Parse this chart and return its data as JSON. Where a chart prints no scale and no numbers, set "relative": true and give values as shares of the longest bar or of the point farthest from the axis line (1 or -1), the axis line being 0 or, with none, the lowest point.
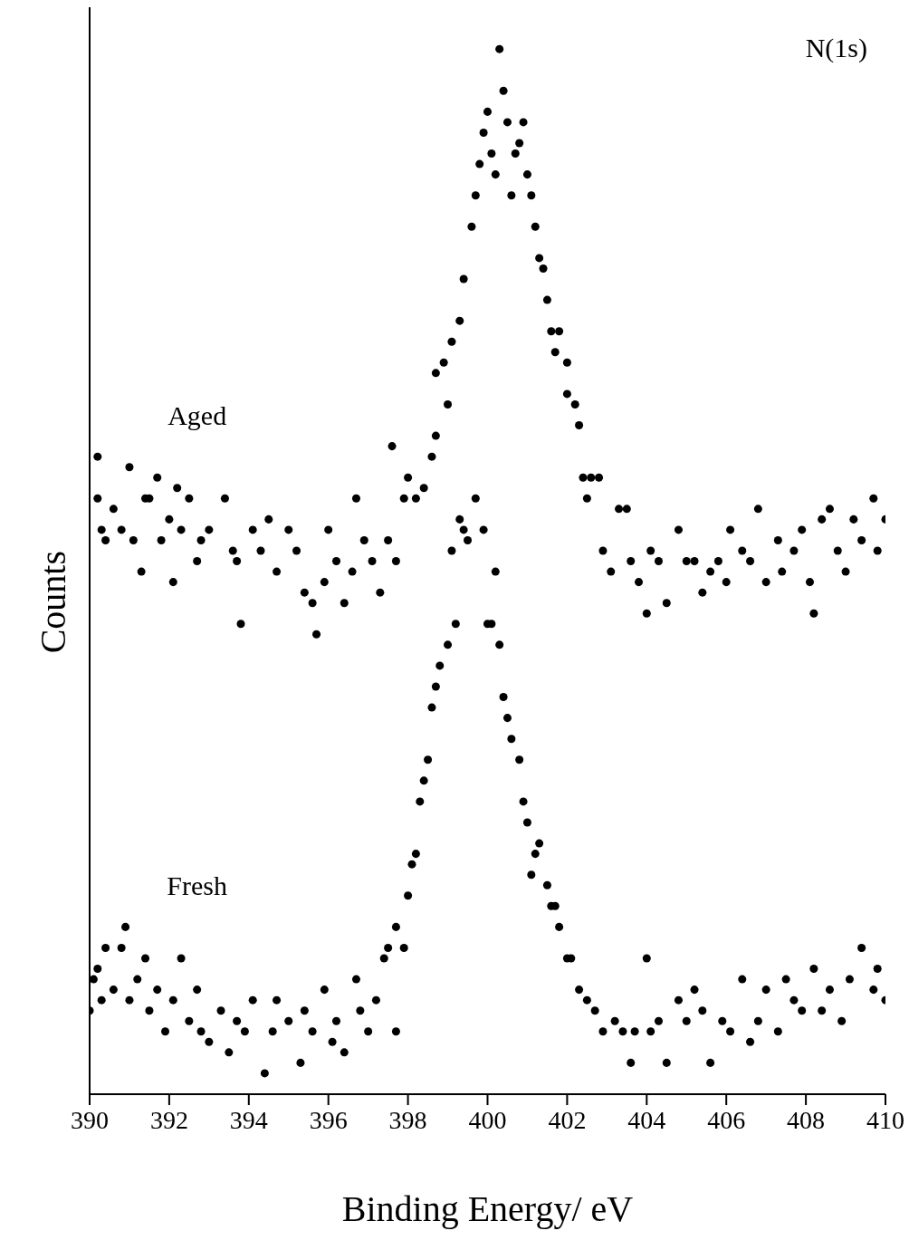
{
  "chart_data": {
    "type": "scatter",
    "relative": true,
    "xlabel": "Binding Energy/ eV",
    "ylabel": "Counts",
    "annotations": [
      "N(1s)"
    ],
    "xlim": [
      390,
      410
    ],
    "xticks": [
      390,
      392,
      394,
      396,
      398,
      400,
      402,
      404,
      406,
      408,
      410
    ],
    "marker": "circle",
    "grid": false,
    "legend": false,
    "series": [
      {
        "name": "Aged",
        "color": "#000000",
        "x": [
          390.2,
          390.2,
          390.3,
          390.4,
          390.6,
          390.8,
          391.0,
          391.1,
          391.3,
          391.4,
          391.5,
          391.7,
          391.8,
          392.0,
          392.1,
          392.2,
          392.3,
          392.5,
          392.7,
          392.8,
          393.0,
          393.4,
          393.6,
          393.7,
          393.8,
          394.1,
          394.3,
          394.5,
          394.7,
          395.0,
          395.2,
          395.4,
          395.6,
          395.7,
          395.9,
          396.0,
          396.2,
          396.4,
          396.6,
          396.7,
          396.9,
          397.1,
          397.3,
          397.5,
          397.6,
          397.7,
          397.9,
          398.0,
          398.2,
          398.4,
          398.6,
          398.7,
          398.7,
          398.9,
          399.0,
          399.1,
          399.3,
          399.4,
          399.6,
          399.7,
          399.8,
          399.9,
          400.0,
          400.1,
          400.2,
          400.3,
          400.4,
          400.5,
          400.6,
          400.7,
          400.8,
          400.9,
          401.0,
          401.1,
          401.2,
          401.3,
          401.4,
          401.5,
          401.6,
          401.7,
          401.8,
          402.0,
          402.0,
          402.2,
          402.3,
          402.4,
          402.5,
          402.6,
          402.8,
          402.9,
          403.1,
          403.3,
          403.5,
          403.6,
          403.8,
          404.0,
          404.1,
          404.3,
          404.5,
          404.8,
          405.0,
          405.2,
          405.4,
          405.6,
          405.8,
          406.0,
          406.1,
          406.4,
          406.6,
          406.8,
          407.0,
          407.3,
          407.4,
          407.7,
          407.9,
          408.1,
          408.2,
          408.4,
          408.6,
          408.8,
          409.0,
          409.2,
          409.4,
          409.7,
          409.8,
          410.0
        ],
        "values": [
          0.61,
          0.57,
          0.54,
          0.53,
          0.56,
          0.54,
          0.6,
          0.53,
          0.5,
          0.57,
          0.57,
          0.59,
          0.53,
          0.55,
          0.49,
          0.58,
          0.54,
          0.57,
          0.51,
          0.53,
          0.54,
          0.57,
          0.52,
          0.51,
          0.45,
          0.54,
          0.52,
          0.55,
          0.5,
          0.54,
          0.52,
          0.48,
          0.47,
          0.44,
          0.49,
          0.54,
          0.51,
          0.47,
          0.5,
          0.57,
          0.53,
          0.51,
          0.48,
          0.53,
          0.62,
          0.51,
          0.57,
          0.59,
          0.57,
          0.58,
          0.61,
          0.69,
          0.63,
          0.7,
          0.66,
          0.72,
          0.74,
          0.78,
          0.83,
          0.86,
          0.89,
          0.92,
          0.94,
          0.9,
          0.88,
          1,
          0.96,
          0.93,
          0.86,
          0.9,
          0.91,
          0.93,
          0.88,
          0.86,
          0.83,
          0.8,
          0.79,
          0.76,
          0.73,
          0.71,
          0.73,
          0.7,
          0.67,
          0.66,
          0.64,
          0.59,
          0.57,
          0.59,
          0.59,
          0.52,
          0.5,
          0.56,
          0.56,
          0.51,
          0.49,
          0.46,
          0.52,
          0.51,
          0.47,
          0.54,
          0.51,
          0.51,
          0.48,
          0.5,
          0.51,
          0.49,
          0.54,
          0.52,
          0.51,
          0.56,
          0.49,
          0.53,
          0.5,
          0.52,
          0.54,
          0.49,
          0.46,
          0.55,
          0.56,
          0.52,
          0.5,
          0.55,
          0.53,
          0.57,
          0.52,
          0.55
        ]
      },
      {
        "name": "Fresh",
        "color": "#000000",
        "x": [
          390.0,
          390.1,
          390.2,
          390.3,
          390.4,
          390.6,
          390.8,
          390.9,
          391.0,
          391.2,
          391.4,
          391.5,
          391.7,
          391.9,
          392.1,
          392.3,
          392.5,
          392.7,
          392.8,
          393.0,
          393.3,
          393.5,
          393.7,
          393.9,
          394.1,
          394.4,
          394.6,
          394.7,
          395.0,
          395.3,
          395.4,
          395.6,
          395.9,
          396.1,
          396.2,
          396.4,
          396.7,
          396.8,
          397.0,
          397.2,
          397.4,
          397.5,
          397.7,
          397.7,
          397.9,
          398.0,
          398.1,
          398.2,
          398.3,
          398.4,
          398.5,
          398.6,
          398.7,
          398.8,
          399.0,
          399.1,
          399.2,
          399.3,
          399.4,
          399.5,
          399.7,
          399.9,
          400.0,
          400.1,
          400.2,
          400.3,
          400.4,
          400.5,
          400.6,
          400.8,
          400.9,
          401.0,
          401.1,
          401.2,
          401.3,
          401.5,
          401.6,
          401.7,
          401.8,
          402.0,
          402.1,
          402.3,
          402.5,
          402.7,
          402.9,
          403.2,
          403.4,
          403.6,
          403.7,
          404.0,
          404.1,
          404.3,
          404.5,
          404.8,
          405.0,
          405.2,
          405.4,
          405.6,
          405.9,
          406.1,
          406.4,
          406.6,
          406.8,
          407.0,
          407.3,
          407.5,
          407.7,
          407.9,
          408.2,
          408.4,
          408.6,
          408.9,
          409.1,
          409.4,
          409.7,
          409.8,
          410.0
        ],
        "values": [
          0.08,
          0.11,
          0.12,
          0.09,
          0.14,
          0.1,
          0.14,
          0.16,
          0.09,
          0.11,
          0.13,
          0.08,
          0.1,
          0.06,
          0.09,
          0.13,
          0.07,
          0.1,
          0.06,
          0.05,
          0.08,
          0.04,
          0.07,
          0.06,
          0.09,
          0.02,
          0.06,
          0.09,
          0.07,
          0.03,
          0.08,
          0.06,
          0.1,
          0.05,
          0.07,
          0.04,
          0.11,
          0.08,
          0.06,
          0.09,
          0.13,
          0.14,
          0.06,
          0.16,
          0.14,
          0.19,
          0.22,
          0.23,
          0.28,
          0.3,
          0.32,
          0.37,
          0.39,
          0.41,
          0.43,
          0.52,
          0.45,
          0.55,
          0.54,
          0.53,
          0.57,
          0.54,
          0.45,
          0.45,
          0.5,
          0.43,
          0.38,
          0.36,
          0.34,
          0.32,
          0.28,
          0.26,
          0.21,
          0.23,
          0.24,
          0.2,
          0.18,
          0.18,
          0.16,
          0.13,
          0.13,
          0.1,
          0.09,
          0.08,
          0.06,
          0.07,
          0.06,
          0.03,
          0.06,
          0.13,
          0.06,
          0.07,
          0.03,
          0.09,
          0.07,
          0.1,
          0.08,
          0.03,
          0.07,
          0.06,
          0.11,
          0.05,
          0.07,
          0.1,
          0.06,
          0.11,
          0.09,
          0.08,
          0.12,
          0.08,
          0.1,
          0.07,
          0.11,
          0.14,
          0.1,
          0.12,
          0.09
        ]
      }
    ]
  }
}
